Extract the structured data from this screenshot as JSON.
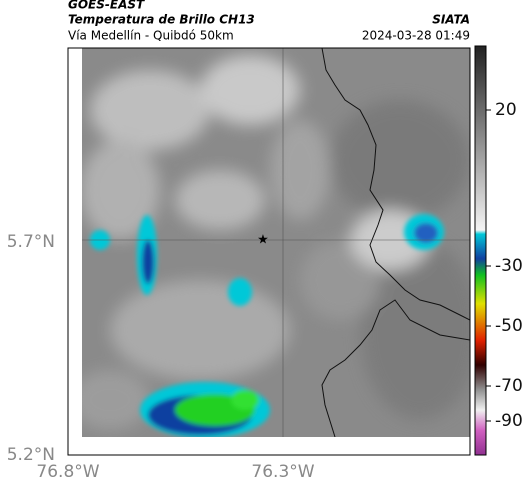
{
  "header": {
    "product": "GOES-EAST",
    "title": "Temperatura de Brillo CH13",
    "subtitle": "Vía Medellín - Quibdó 50km",
    "source": "SIATA",
    "timestamp": "2024-03-28 01:49"
  },
  "map": {
    "lat_labels": [
      "5.7°N",
      "5.2°N"
    ],
    "lon_labels": [
      "76.8°W",
      "76.3°W"
    ]
  },
  "colorbar": {
    "ticks": [
      20,
      -30,
      -50,
      -70,
      -90
    ]
  }
}
